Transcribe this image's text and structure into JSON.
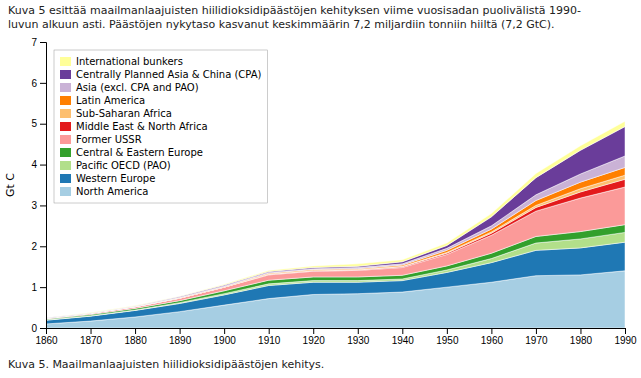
{
  "chart_data": {
    "type": "area",
    "stacked": true,
    "title": "Kuva 5 esittää maailmanlaajuisten hiilidioksidipäästöjen kehityksen viime vuosisadan puolivälistä 1990-\nluvun alkuun asti. Päästöjen nykytaso kasvanut keskimmäärin 7,2 miljardiin tonniin hiiltä (7,2 GtC).",
    "caption": "Kuva 5. Maailmanlaajuisten hiilidioksidipäästöjen kehitys.",
    "y_label": "Gt C",
    "x": [
      1860,
      1870,
      1880,
      1890,
      1900,
      1910,
      1920,
      1930,
      1940,
      1950,
      1960,
      1970,
      1980,
      1990
    ],
    "xlim": [
      1860,
      1990
    ],
    "xticks": [
      1860,
      1870,
      1880,
      1890,
      1900,
      1910,
      1920,
      1930,
      1940,
      1950,
      1960,
      1970,
      1980,
      1990
    ],
    "ylim": [
      0,
      7
    ],
    "yticks": [
      0,
      1,
      2,
      3,
      4,
      5,
      6,
      7
    ],
    "grid": false,
    "legend": "upper-left",
    "series": [
      {
        "name": "North America",
        "values": [
          0.1,
          0.17,
          0.27,
          0.4,
          0.56,
          0.72,
          0.82,
          0.84,
          0.88,
          1.0,
          1.12,
          1.28,
          1.3,
          1.4
        ]
      },
      {
        "name": "Western Europe",
        "values": [
          0.09,
          0.12,
          0.16,
          0.2,
          0.25,
          0.32,
          0.3,
          0.28,
          0.28,
          0.36,
          0.48,
          0.62,
          0.66,
          0.7
        ]
      },
      {
        "name": "Pacific OECD (PAO)",
        "values": [
          0.01,
          0.01,
          0.01,
          0.02,
          0.03,
          0.04,
          0.04,
          0.04,
          0.04,
          0.06,
          0.1,
          0.18,
          0.22,
          0.24
        ]
      },
      {
        "name": "Central & Eastern Europe",
        "values": [
          0.02,
          0.03,
          0.04,
          0.05,
          0.07,
          0.09,
          0.09,
          0.09,
          0.09,
          0.1,
          0.13,
          0.16,
          0.18,
          0.19
        ]
      },
      {
        "name": "Former USSR",
        "values": [
          0.02,
          0.03,
          0.04,
          0.06,
          0.09,
          0.13,
          0.14,
          0.16,
          0.19,
          0.28,
          0.44,
          0.62,
          0.82,
          0.92
        ]
      },
      {
        "name": "Middle East & North Africa",
        "values": [
          0.0,
          0.0,
          0.0,
          0.0,
          0.0,
          0.01,
          0.01,
          0.01,
          0.02,
          0.03,
          0.05,
          0.09,
          0.15,
          0.19
        ]
      },
      {
        "name": "Sub-Saharan Africa",
        "values": [
          0.0,
          0.0,
          0.0,
          0.0,
          0.0,
          0.01,
          0.01,
          0.01,
          0.01,
          0.02,
          0.03,
          0.05,
          0.08,
          0.1
        ]
      },
      {
        "name": "Latin America",
        "values": [
          0.0,
          0.0,
          0.0,
          0.01,
          0.01,
          0.02,
          0.02,
          0.02,
          0.03,
          0.05,
          0.07,
          0.12,
          0.16,
          0.19
        ]
      },
      {
        "name": "Asia (excl. CPA and PAO)",
        "values": [
          0.0,
          0.0,
          0.01,
          0.01,
          0.02,
          0.02,
          0.02,
          0.03,
          0.03,
          0.05,
          0.08,
          0.14,
          0.2,
          0.28
        ]
      },
      {
        "name": "Centrally Planned Asia & China (CPA)",
        "values": [
          0.01,
          0.01,
          0.01,
          0.02,
          0.02,
          0.02,
          0.03,
          0.03,
          0.05,
          0.07,
          0.22,
          0.42,
          0.58,
          0.72
        ]
      },
      {
        "name": "International bunkers",
        "values": [
          0.0,
          0.01,
          0.01,
          0.01,
          0.02,
          0.03,
          0.04,
          0.06,
          0.05,
          0.06,
          0.08,
          0.1,
          0.11,
          0.13
        ]
      }
    ]
  }
}
